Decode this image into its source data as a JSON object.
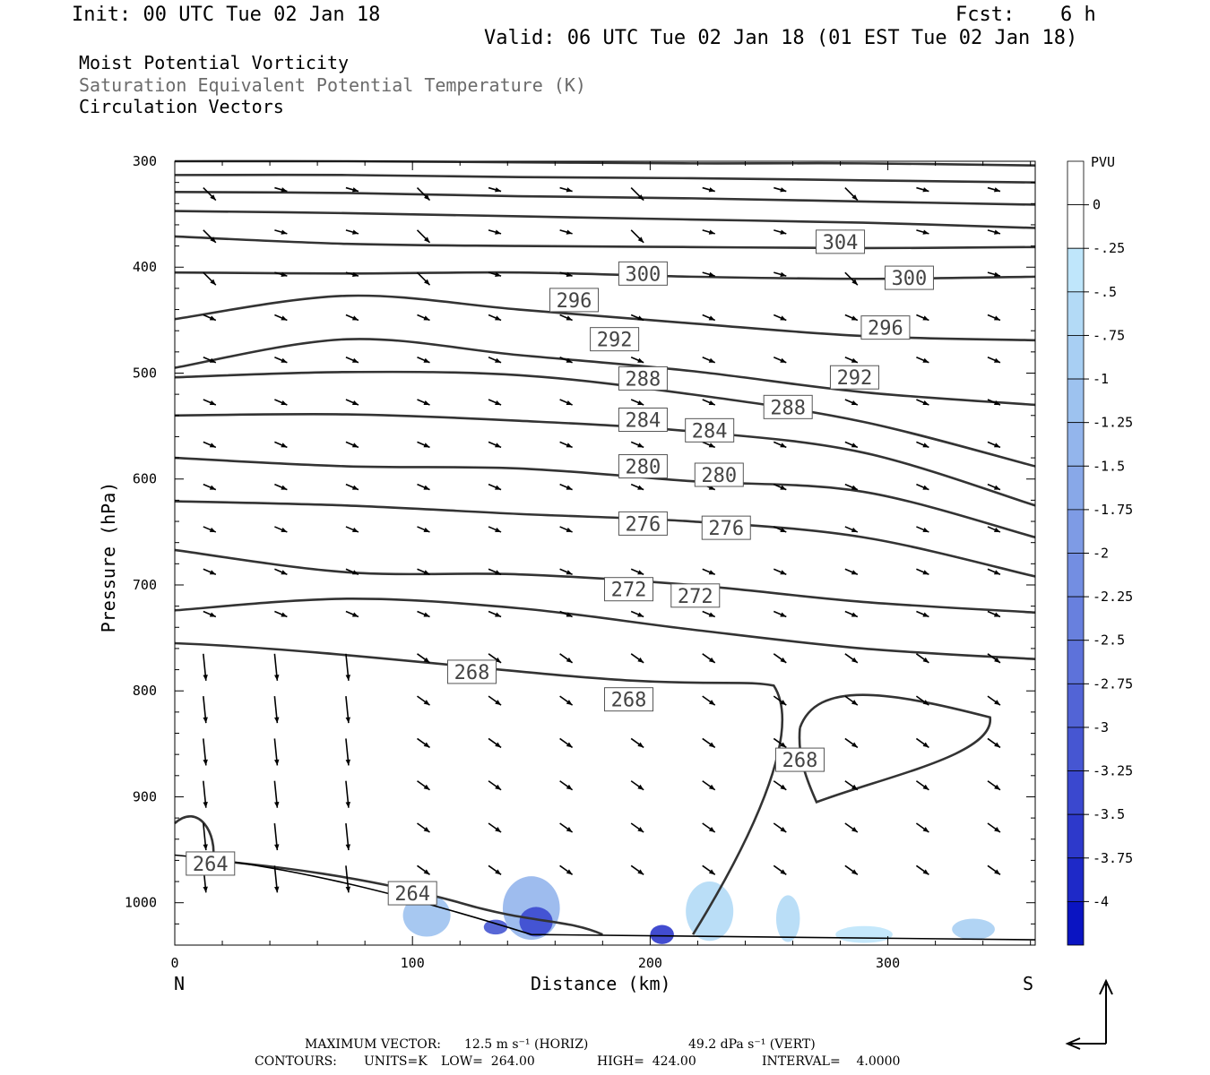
{
  "header": {
    "init": "Init: 00 UTC Tue 02 Jan 18",
    "fcst_label": "Fcst:",
    "fcst_value": "6 h",
    "valid": "Valid: 06 UTC Tue 02 Jan 18 (01 EST Tue 02 Jan 18)"
  },
  "legend": {
    "line1": "Moist Potential Vorticity",
    "line2": "Saturation Equivalent Potential Temperature (K)",
    "line3": "Circulation Vectors"
  },
  "colors": {
    "contour": "#333333",
    "gray_text": "#6b6b6b"
  },
  "chart_data": {
    "type": "cross-section",
    "xlabel": "Distance (km)",
    "ylabel": "Pressure (hPa)",
    "xlim": [
      0,
      362
    ],
    "ylim": [
      1040,
      300
    ],
    "x_ticks": [
      0,
      100,
      200,
      300
    ],
    "y_ticks": [
      300,
      400,
      500,
      600,
      700,
      800,
      900,
      1000
    ],
    "left_end_label": "N",
    "right_end_label": "S",
    "colorbar": {
      "unit": "PVU",
      "labels": [
        "0",
        "-.25",
        "-.5",
        "-.75",
        "-1",
        "-1.25",
        "-1.5",
        "-1.75",
        "-2",
        "-2.25",
        "-2.5",
        "-2.75",
        "-3",
        "-3.25",
        "-3.5",
        "-3.75",
        "-4"
      ],
      "colors": [
        "#ffffff",
        "#ffffff",
        "#bfe6fb",
        "#b3daf6",
        "#a8cff3",
        "#9dc2ef",
        "#93b5ec",
        "#88a8e8",
        "#7e9be5",
        "#738ee2",
        "#6880de",
        "#5d72da",
        "#5264d6",
        "#4656d2",
        "#3a48cf",
        "#2d39cb",
        "#1e29c8",
        "#0a14c2"
      ]
    },
    "contour_labels": [
      {
        "v": "304",
        "x": 280,
        "p": 376
      },
      {
        "v": "300",
        "x": 197,
        "p": 406
      },
      {
        "v": "300",
        "x": 309,
        "p": 410
      },
      {
        "v": "296",
        "x": 168,
        "p": 431
      },
      {
        "v": "296",
        "x": 299,
        "p": 457
      },
      {
        "v": "292",
        "x": 185,
        "p": 468
      },
      {
        "v": "292",
        "x": 286,
        "p": 504
      },
      {
        "v": "288",
        "x": 197,
        "p": 505
      },
      {
        "v": "288",
        "x": 258,
        "p": 532
      },
      {
        "v": "284",
        "x": 197,
        "p": 544
      },
      {
        "v": "284",
        "x": 225,
        "p": 554
      },
      {
        "v": "280",
        "x": 197,
        "p": 588
      },
      {
        "v": "280",
        "x": 229,
        "p": 596
      },
      {
        "v": "276",
        "x": 197,
        "p": 642
      },
      {
        "v": "276",
        "x": 232,
        "p": 646
      },
      {
        "v": "272",
        "x": 191,
        "p": 704
      },
      {
        "v": "272",
        "x": 219,
        "p": 710
      },
      {
        "v": "268",
        "x": 125,
        "p": 782
      },
      {
        "v": "268",
        "x": 191,
        "p": 808
      },
      {
        "v": "268",
        "x": 263,
        "p": 865
      },
      {
        "v": "264",
        "x": 15,
        "p": 963
      },
      {
        "v": "264",
        "x": 100,
        "p": 991
      }
    ],
    "isentropes": [
      {
        "p": [
          300,
          300,
          301,
          302,
          302,
          304
        ]
      },
      {
        "p": [
          313,
          313,
          315,
          316,
          318,
          320
        ]
      },
      {
        "p": [
          329,
          330,
          333,
          335,
          338,
          341
        ]
      },
      {
        "p": [
          347,
          349,
          352,
          355,
          358,
          363
        ]
      },
      {
        "p": [
          371,
          378,
          380,
          381,
          382,
          381
        ]
      },
      {
        "p": [
          405,
          406,
          405,
          409,
          411,
          409
        ]
      },
      {
        "p": [
          449,
          427,
          440,
          453,
          465,
          469
        ]
      },
      {
        "p": [
          495,
          468,
          483,
          498,
          518,
          530
        ]
      },
      {
        "p": [
          504,
          499,
          502,
          520,
          546,
          588
        ]
      },
      {
        "p": [
          540,
          539,
          545,
          555,
          575,
          625
        ]
      },
      {
        "p": [
          580,
          588,
          590,
          602,
          612,
          655
        ]
      },
      {
        "p": [
          621,
          625,
          633,
          640,
          655,
          692
        ]
      },
      {
        "p": [
          667,
          688,
          690,
          700,
          716,
          726
        ]
      },
      {
        "p": [
          724,
          713,
          722,
          742,
          760,
          770
        ]
      }
    ],
    "footer": {
      "max_vector_label": "MAXIMUM VECTOR:",
      "horiz": "12.5 m s⁻¹ (HORIZ)",
      "vert": "49.2 dPa s⁻¹ (VERT)",
      "contours_label": "CONTOURS:",
      "units": "UNITS=K",
      "low": "LOW=  264.00",
      "high": "HIGH=  424.00",
      "interval": "INTERVAL=    4.0000"
    }
  }
}
